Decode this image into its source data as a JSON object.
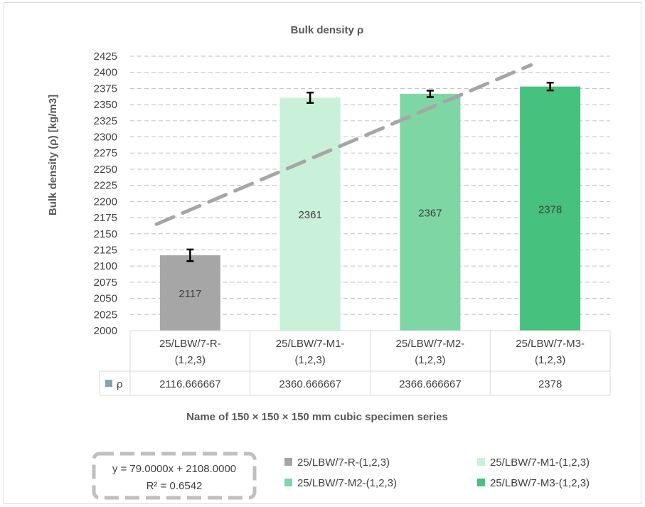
{
  "chart_data": {
    "type": "bar",
    "title": "Bulk density ρ",
    "xlabel": "Name of 150 × 150 × 150 mm cubic specimen series",
    "ylabel": "Bulk density (ρ) [kg/m3]",
    "ylim": [
      2000,
      2425
    ],
    "yticks": [
      2000,
      2025,
      2050,
      2075,
      2100,
      2125,
      2150,
      2175,
      2200,
      2225,
      2250,
      2275,
      2300,
      2325,
      2350,
      2375,
      2400,
      2425
    ],
    "grid": true,
    "categories": [
      [
        "25/LBW/7-R-",
        "(1,2,3)"
      ],
      [
        "25/LBW/7-M1-",
        "(1,2,3)"
      ],
      [
        "25/LBW/7-M2-",
        "(1,2,3)"
      ],
      [
        "25/LBW/7-M3-",
        "(1,2,3)"
      ]
    ],
    "series": [
      {
        "name": "ρ",
        "values": [
          2116.666667,
          2360.666667,
          2366.666667,
          2378
        ],
        "table_values": [
          "2116.666667",
          "2360.666667",
          "2366.666667",
          "2378"
        ],
        "data_labels": [
          "2117",
          "2361",
          "2367",
          "2378"
        ],
        "error": [
          9,
          8,
          5,
          6
        ],
        "colors": [
          "#a6a6a6",
          "#c9f0d9",
          "#7dd6a4",
          "#47c17e"
        ],
        "legend_swatch_color": "#7fa3b8"
      }
    ],
    "trendline": {
      "slope": 79.0,
      "intercept": 2108.0,
      "equation": "y = 79.0000x + 2108.0000",
      "r_squared": "R² = 0.6542",
      "color": "#a6a6a6"
    },
    "legend": {
      "position": "bottom",
      "entries": [
        {
          "label": "25/LBW/7-R-(1,2,3)",
          "color": "#a6a6a6"
        },
        {
          "label": "25/LBW/7-M1-(1,2,3)",
          "color": "#c9f0d9"
        },
        {
          "label": "25/LBW/7-M2-(1,2,3)",
          "color": "#7dd6a4"
        },
        {
          "label": "25/LBW/7-M3-(1,2,3)",
          "color": "#47c17e"
        }
      ]
    },
    "data_table": true
  }
}
